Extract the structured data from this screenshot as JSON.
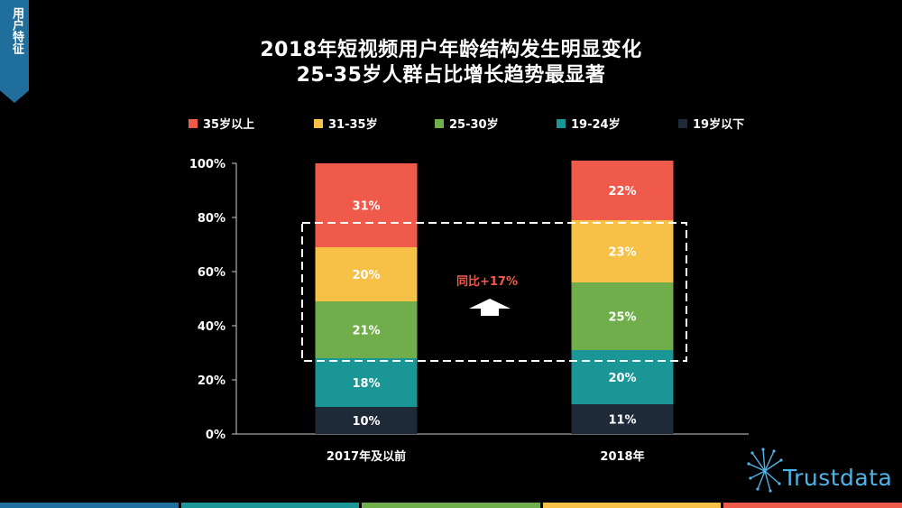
{
  "side_tab": {
    "label": "用户特征",
    "color": "#1f6e9c"
  },
  "title": {
    "line1": "2018年短视频用户年龄结构发生明显变化",
    "line2": "25-35岁人群占比增长趋势最显著"
  },
  "annotation": {
    "text": "同比+17%",
    "color": "#f05a4a"
  },
  "brand": {
    "name": "Trustdata",
    "color": "#4fb3e8"
  },
  "bottom_stripes": [
    "#1f6e9c",
    "#1a9696",
    "#6fae4a",
    "#f6c146",
    "#f05a4a"
  ],
  "chart_data": {
    "type": "bar",
    "stacked": true,
    "categories": [
      "2017年及以前",
      "2018年"
    ],
    "series": [
      {
        "name": "19岁以下",
        "color": "#1e2a38",
        "values": [
          10,
          11
        ]
      },
      {
        "name": "19-24岁",
        "color": "#1a9696",
        "values": [
          18,
          20
        ]
      },
      {
        "name": "25-30岁",
        "color": "#6fae4a",
        "values": [
          21,
          25
        ]
      },
      {
        "name": "31-35岁",
        "color": "#f6c146",
        "values": [
          20,
          23
        ]
      },
      {
        "name": "35岁以上",
        "color": "#f05a4a",
        "values": [
          31,
          22
        ]
      }
    ],
    "data_labels": [
      [
        "10%",
        "11%"
      ],
      [
        "18%",
        "20%"
      ],
      [
        "21%",
        "25%"
      ],
      [
        "20%",
        "23%"
      ],
      [
        "31%",
        "22%"
      ]
    ],
    "legend_order": [
      "35岁以上",
      "31-35岁",
      "25-30岁",
      "19-24岁",
      "19岁以下"
    ],
    "legend_position": "top",
    "y_ticks": [
      "0%",
      "20%",
      "40%",
      "60%",
      "80%",
      "100%"
    ],
    "ylim": [
      0,
      100
    ],
    "highlight": {
      "from": 27,
      "to": 78
    },
    "grid": false
  }
}
